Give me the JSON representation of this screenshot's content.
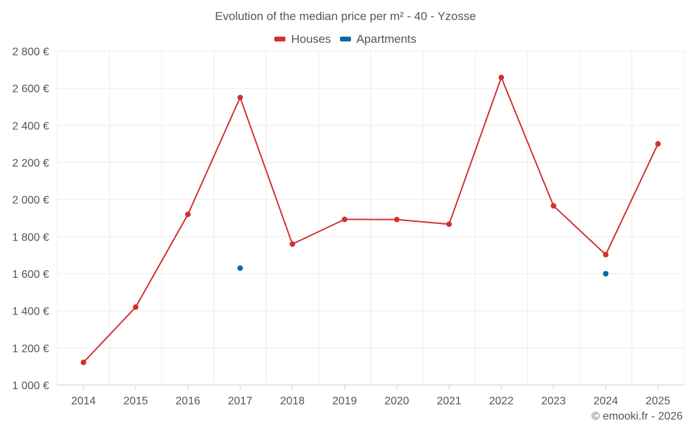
{
  "colors": {
    "houses": "#d32f2f",
    "apartments": "#0d6aa0",
    "grid": "#ebebeb",
    "axis": "#cccccc",
    "text": "#555555"
  },
  "footer": {
    "credit": "© emooki.fr - 2026"
  },
  "chart_data": {
    "type": "line",
    "title": "Evolution of the median price per m² - 40 - Yzosse",
    "xlabel": "",
    "ylabel": "",
    "categories": [
      "2014",
      "2015",
      "2016",
      "2017",
      "2018",
      "2019",
      "2020",
      "2021",
      "2022",
      "2023",
      "2024",
      "2025"
    ],
    "ylim": [
      1000,
      2800
    ],
    "yticks": [
      1000,
      1200,
      1400,
      1600,
      1800,
      2000,
      2200,
      2400,
      2600,
      2800
    ],
    "ytick_labels": [
      "1 000 €",
      "1 200 €",
      "1 400 €",
      "1 600 €",
      "1 800 €",
      "2 000 €",
      "2 200 €",
      "2 400 €",
      "2 600 €",
      "2 800 €"
    ],
    "grid": true,
    "legend_position": "top-center",
    "series": [
      {
        "name": "Houses",
        "color": "#d32f2f",
        "line": true,
        "values": [
          1122,
          1420,
          1920,
          2550,
          1760,
          1893,
          1892,
          1867,
          2658,
          1966,
          1703,
          2300
        ]
      },
      {
        "name": "Apartments",
        "color": "#0d6aa0",
        "line": false,
        "values": [
          null,
          null,
          null,
          1630,
          null,
          null,
          null,
          null,
          null,
          null,
          1600,
          null
        ]
      }
    ]
  }
}
